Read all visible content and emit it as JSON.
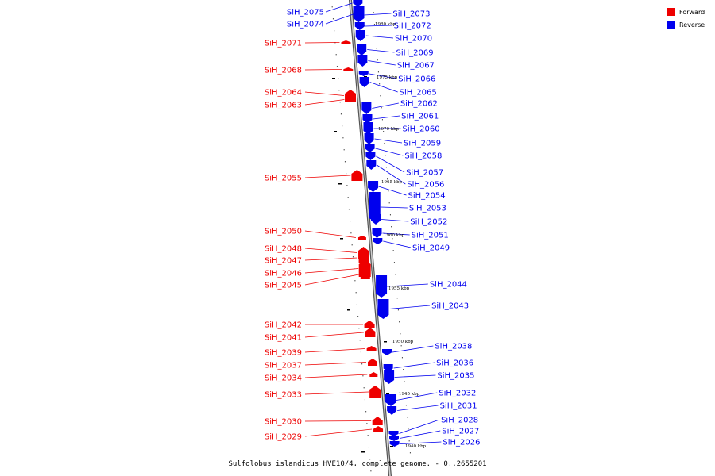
{
  "caption": "Sulfolobus islandicus HVE10/4, complete genome. - 0..2655201",
  "legend": [
    {
      "name": "Forward",
      "color": "#ee0000"
    },
    {
      "name": "Reverse",
      "color": "#0000ee"
    }
  ],
  "colors": {
    "forward": "#ee0000",
    "reverse": "#0000ee",
    "backbone": "#888888"
  },
  "ticks": [
    "1980 kbp",
    "1975 kbp",
    "1970 kbp",
    "1965 kbp",
    "1960 kbp",
    "1955 kbp",
    "1950 kbp",
    "1945 kbp",
    "1940 kbp"
  ],
  "genes_forward": [
    "SiH_2071",
    "SiH_2068",
    "SiH_2064",
    "SiH_2063",
    "SiH_2055",
    "SiH_2050",
    "SiH_2048",
    "SiH_2047",
    "SiH_2046",
    "SiH_2045",
    "SiH_2042",
    "SiH_2041",
    "SiH_2039",
    "SiH_2037",
    "SiH_2034",
    "SiH_2033",
    "SiH_2030",
    "SiH_2029"
  ],
  "genes_reverse": [
    "SiH_2075",
    "SiH_2074",
    "SiH_2073",
    "SiH_2072",
    "SiH_2070",
    "SiH_2069",
    "SiH_2067",
    "SiH_2066",
    "SiH_2065",
    "SiH_2062",
    "SiH_2061",
    "SiH_2060",
    "SiH_2059",
    "SiH_2058",
    "SiH_2057",
    "SiH_2056",
    "SiH_2054",
    "SiH_2053",
    "SiH_2052",
    "SiH_2051",
    "SiH_2049",
    "SiH_2044",
    "SiH_2043",
    "SiH_2038",
    "SiH_2036",
    "SiH_2035",
    "SiH_2032",
    "SiH_2031",
    "SiH_2028",
    "SiH_2027",
    "SiH_2026"
  ]
}
